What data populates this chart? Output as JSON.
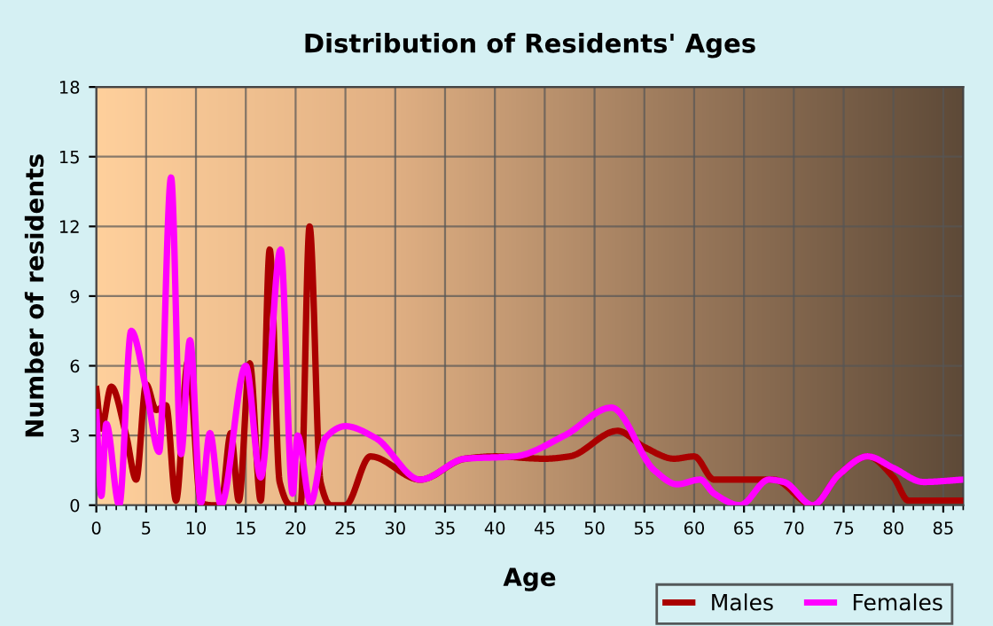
{
  "chart_data": {
    "type": "line",
    "title": "Distribution of Residents' Ages",
    "xlabel": "Age",
    "ylabel": "Number of residents",
    "xlim": [
      0,
      87
    ],
    "xticks": [
      0,
      5,
      10,
      15,
      20,
      25,
      30,
      35,
      40,
      45,
      50,
      55,
      60,
      65,
      70,
      75,
      80,
      85
    ],
    "ylim": [
      0,
      18
    ],
    "yticks": [
      0,
      3,
      6,
      9,
      12,
      15,
      18
    ],
    "grid": true,
    "legend": "bottom right",
    "marker": "none",
    "line_style": "solid",
    "series": [
      {
        "name": "Males",
        "color": "#aa0000",
        "x": [
          0,
          0.5,
          1.5,
          3,
          4,
          5,
          6,
          7,
          8,
          9.2,
          10.5,
          11.5,
          12.5,
          13.5,
          14.3,
          15.4,
          16.5,
          17.4,
          18.4,
          19.5,
          20.5,
          21.4,
          22.5,
          23.5,
          25,
          27.5,
          32.5,
          37,
          40,
          45,
          47.5,
          52.3,
          55,
          58,
          60,
          62,
          66,
          68,
          71.9,
          74.5,
          77.4,
          80,
          81.5,
          84,
          87
        ],
        "values": [
          5,
          3.3,
          5.1,
          3,
          1.1,
          5.2,
          4.1,
          4.3,
          0.2,
          6.2,
          0.1,
          0,
          0,
          3.1,
          0.2,
          6.1,
          0.2,
          11,
          1,
          0,
          0,
          12,
          1,
          0,
          0,
          2.1,
          1.1,
          2,
          2.1,
          2,
          2.1,
          3.2,
          2.5,
          2,
          2.1,
          1.1,
          1.1,
          1.1,
          0,
          1.3,
          2.1,
          1.2,
          0.2,
          0.2,
          0.2
        ]
      },
      {
        "name": "Females",
        "color": "#ff00ff",
        "x": [
          0,
          0.5,
          1,
          2.3,
          3.5,
          5,
          6.3,
          7.5,
          8.5,
          9.4,
          10.5,
          11.4,
          12.5,
          15,
          16.5,
          18.5,
          19.7,
          20.2,
          21.5,
          23,
          25,
          28,
          32.5,
          37,
          42,
          47,
          51.7,
          56,
          58.3,
          60.6,
          62,
          64.6,
          67.5,
          69,
          71.9,
          74.5,
          77.4,
          80,
          83,
          87
        ],
        "values": [
          4,
          0.4,
          3.5,
          0,
          7.5,
          5,
          2.3,
          14.1,
          2.2,
          7.1,
          0.1,
          3.1,
          0,
          6,
          1.2,
          11,
          0.5,
          3,
          0.1,
          2.9,
          3.4,
          2.9,
          1.1,
          2,
          2.1,
          3,
          4.2,
          1.5,
          0.9,
          1.1,
          0.5,
          0,
          1.1,
          1,
          0,
          1.3,
          2.1,
          1.6,
          1,
          1.1
        ]
      }
    ]
  }
}
